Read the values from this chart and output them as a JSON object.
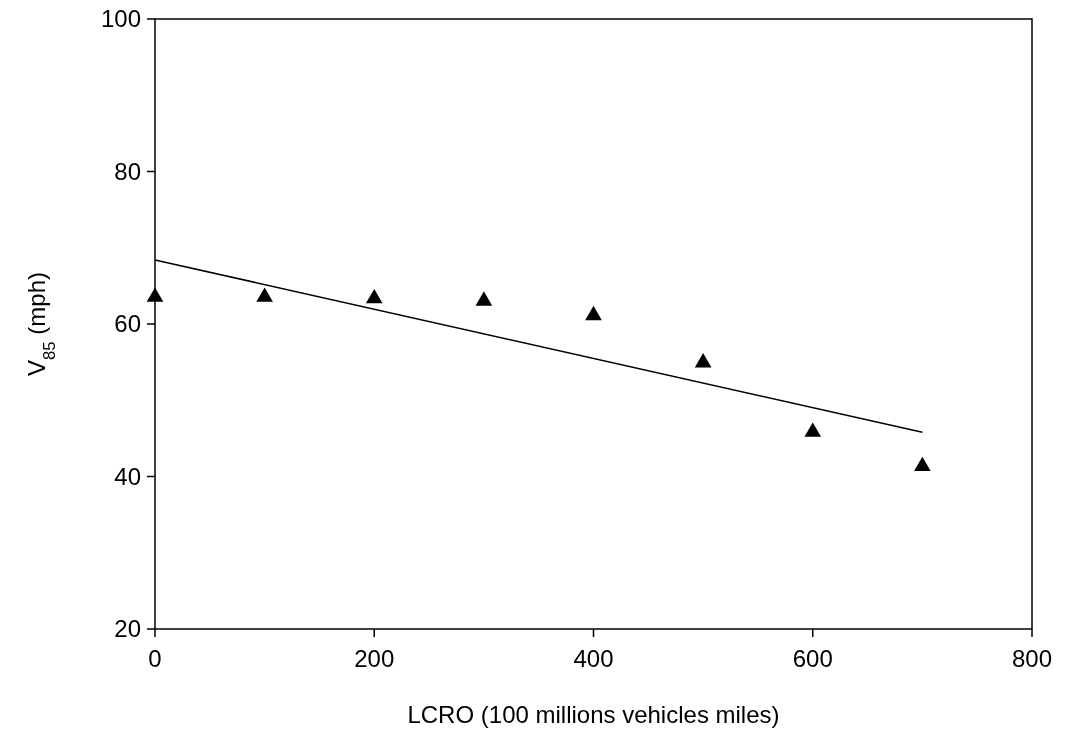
{
  "chart_data": {
    "type": "scatter",
    "xlabel": "LCRO (100 millions vehicles miles)",
    "ylabel": "V$_{85}$ (mph)",
    "xlim": [
      0,
      800
    ],
    "ylim": [
      20,
      100
    ],
    "xticks": [
      0,
      200,
      400,
      600,
      800
    ],
    "yticks": [
      20,
      40,
      60,
      80,
      100
    ],
    "grid": false,
    "series": [
      {
        "marker": "triangle",
        "color": "#000000",
        "x": [
          0,
          100,
          200,
          300,
          400,
          500,
          600,
          700
        ],
        "values": [
          63.8,
          63.8,
          63.6,
          63.3,
          61.4,
          55.2,
          46.1,
          41.6
        ]
      },
      {
        "type": "line",
        "marker": "none",
        "line_style": "solid",
        "color": "#000000",
        "x": [
          0,
          700
        ],
        "values": [
          68.4,
          45.8
        ]
      }
    ]
  }
}
